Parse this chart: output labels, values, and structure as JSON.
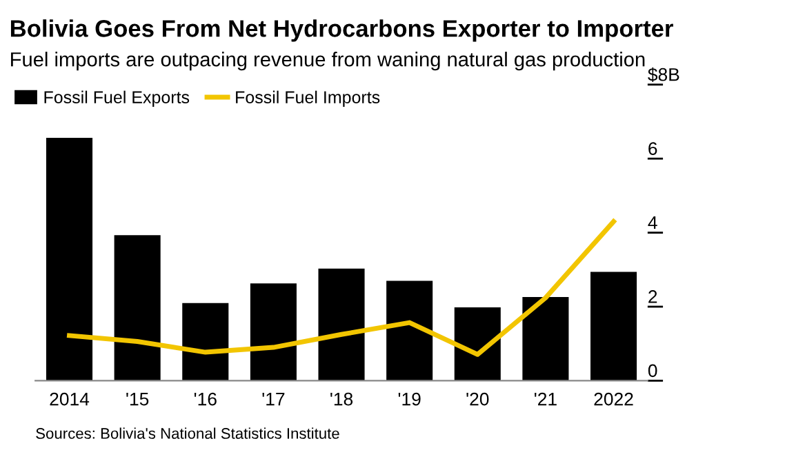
{
  "chart_data": {
    "type": "bar",
    "title": "Bolivia Goes From Net Hydrocarbons Exporter to Importer",
    "subtitle": "Fuel imports are outpacing revenue from waning natural gas production",
    "categories": [
      "2014",
      "'15",
      "'16",
      "'17",
      "'18",
      "'19",
      "'20",
      "'21",
      "2022"
    ],
    "series": [
      {
        "name": "Fossil Fuel Exports",
        "color": "#000000",
        "values": [
          6.56,
          3.93,
          2.1,
          2.63,
          3.03,
          2.7,
          1.98,
          2.26,
          2.94
        ]
      },
      {
        "name": "Fossil Fuel Imports",
        "type": "line",
        "color": "#f2c500",
        "values": [
          1.22,
          1.06,
          0.77,
          0.9,
          1.25,
          1.57,
          0.71,
          2.24,
          4.3
        ]
      }
    ],
    "ylim": [
      0,
      8
    ],
    "yticks": [
      0,
      2,
      4,
      6,
      {
        "value": 8,
        "label": "$8B"
      }
    ],
    "grid": false,
    "legend": "top left",
    "annotations": [
      "Sources: Bolivia's National Statistics Institute"
    ]
  }
}
